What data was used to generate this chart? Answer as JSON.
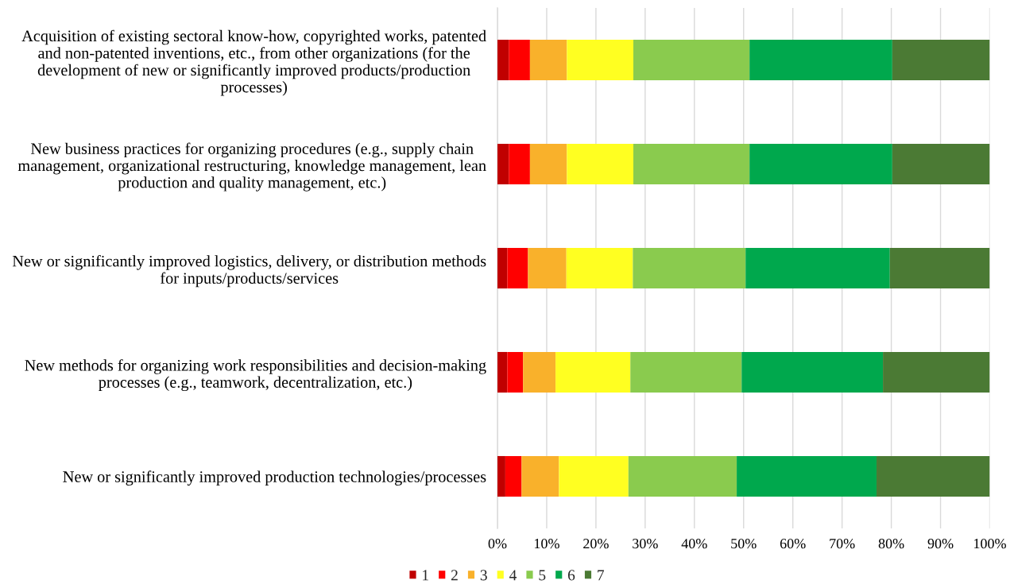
{
  "chart_data": {
    "type": "bar",
    "orientation": "horizontal",
    "stacked": true,
    "categories": [
      "Acquisition of existing sectoral know-how, copyrighted works, patented\nand non-patented inventions, etc., from other organizations (for the\ndevelopment of new or significantly improved products/production\nprocesses)",
      "New business practices for organizing procedures (e.g., supply chain\nmanagement, organizational restructuring, knowledge management, lean\nproduction and quality management, etc.)",
      "New or significantly improved logistics, delivery, or distribution methods\nfor inputs/products/services",
      "New methods for organizing work responsibilities and decision-making\nprocesses (e.g., teamwork, decentralization, etc.)",
      "New or significantly improved production technologies/processes"
    ],
    "series": [
      {
        "name": "1",
        "color": "#c00000",
        "values": [
          2.3,
          2.3,
          2.0,
          2.0,
          1.6
        ]
      },
      {
        "name": "2",
        "color": "#ff0000",
        "values": [
          4.3,
          4.3,
          4.2,
          3.2,
          3.3
        ]
      },
      {
        "name": "3",
        "color": "#f9b12b",
        "values": [
          7.5,
          7.5,
          7.8,
          6.6,
          7.6
        ]
      },
      {
        "name": "4",
        "color": "#ffff21",
        "values": [
          13.5,
          13.5,
          13.5,
          15.2,
          14.1
        ]
      },
      {
        "name": "5",
        "color": "#8acb4e",
        "values": [
          23.6,
          23.6,
          22.9,
          22.6,
          22.0
        ]
      },
      {
        "name": "6",
        "color": "#00a84d",
        "values": [
          29.0,
          29.0,
          29.3,
          28.7,
          28.4
        ]
      },
      {
        "name": "7",
        "color": "#4b7a34",
        "values": [
          19.8,
          19.8,
          20.3,
          21.7,
          23.0
        ]
      }
    ],
    "xlim": [
      0,
      100
    ],
    "xticks": [
      {
        "value": 0,
        "label": "0%"
      },
      {
        "value": 10,
        "label": "10%"
      },
      {
        "value": 20,
        "label": "20%"
      },
      {
        "value": 30,
        "label": "30%"
      },
      {
        "value": 40,
        "label": "40%"
      },
      {
        "value": 50,
        "label": "50%"
      },
      {
        "value": 60,
        "label": "60%"
      },
      {
        "value": 70,
        "label": "70%"
      },
      {
        "value": 80,
        "label": "80%"
      },
      {
        "value": 90,
        "label": "90%"
      },
      {
        "value": 100,
        "label": "100%"
      }
    ],
    "grid": "x",
    "legend": "bottom"
  }
}
